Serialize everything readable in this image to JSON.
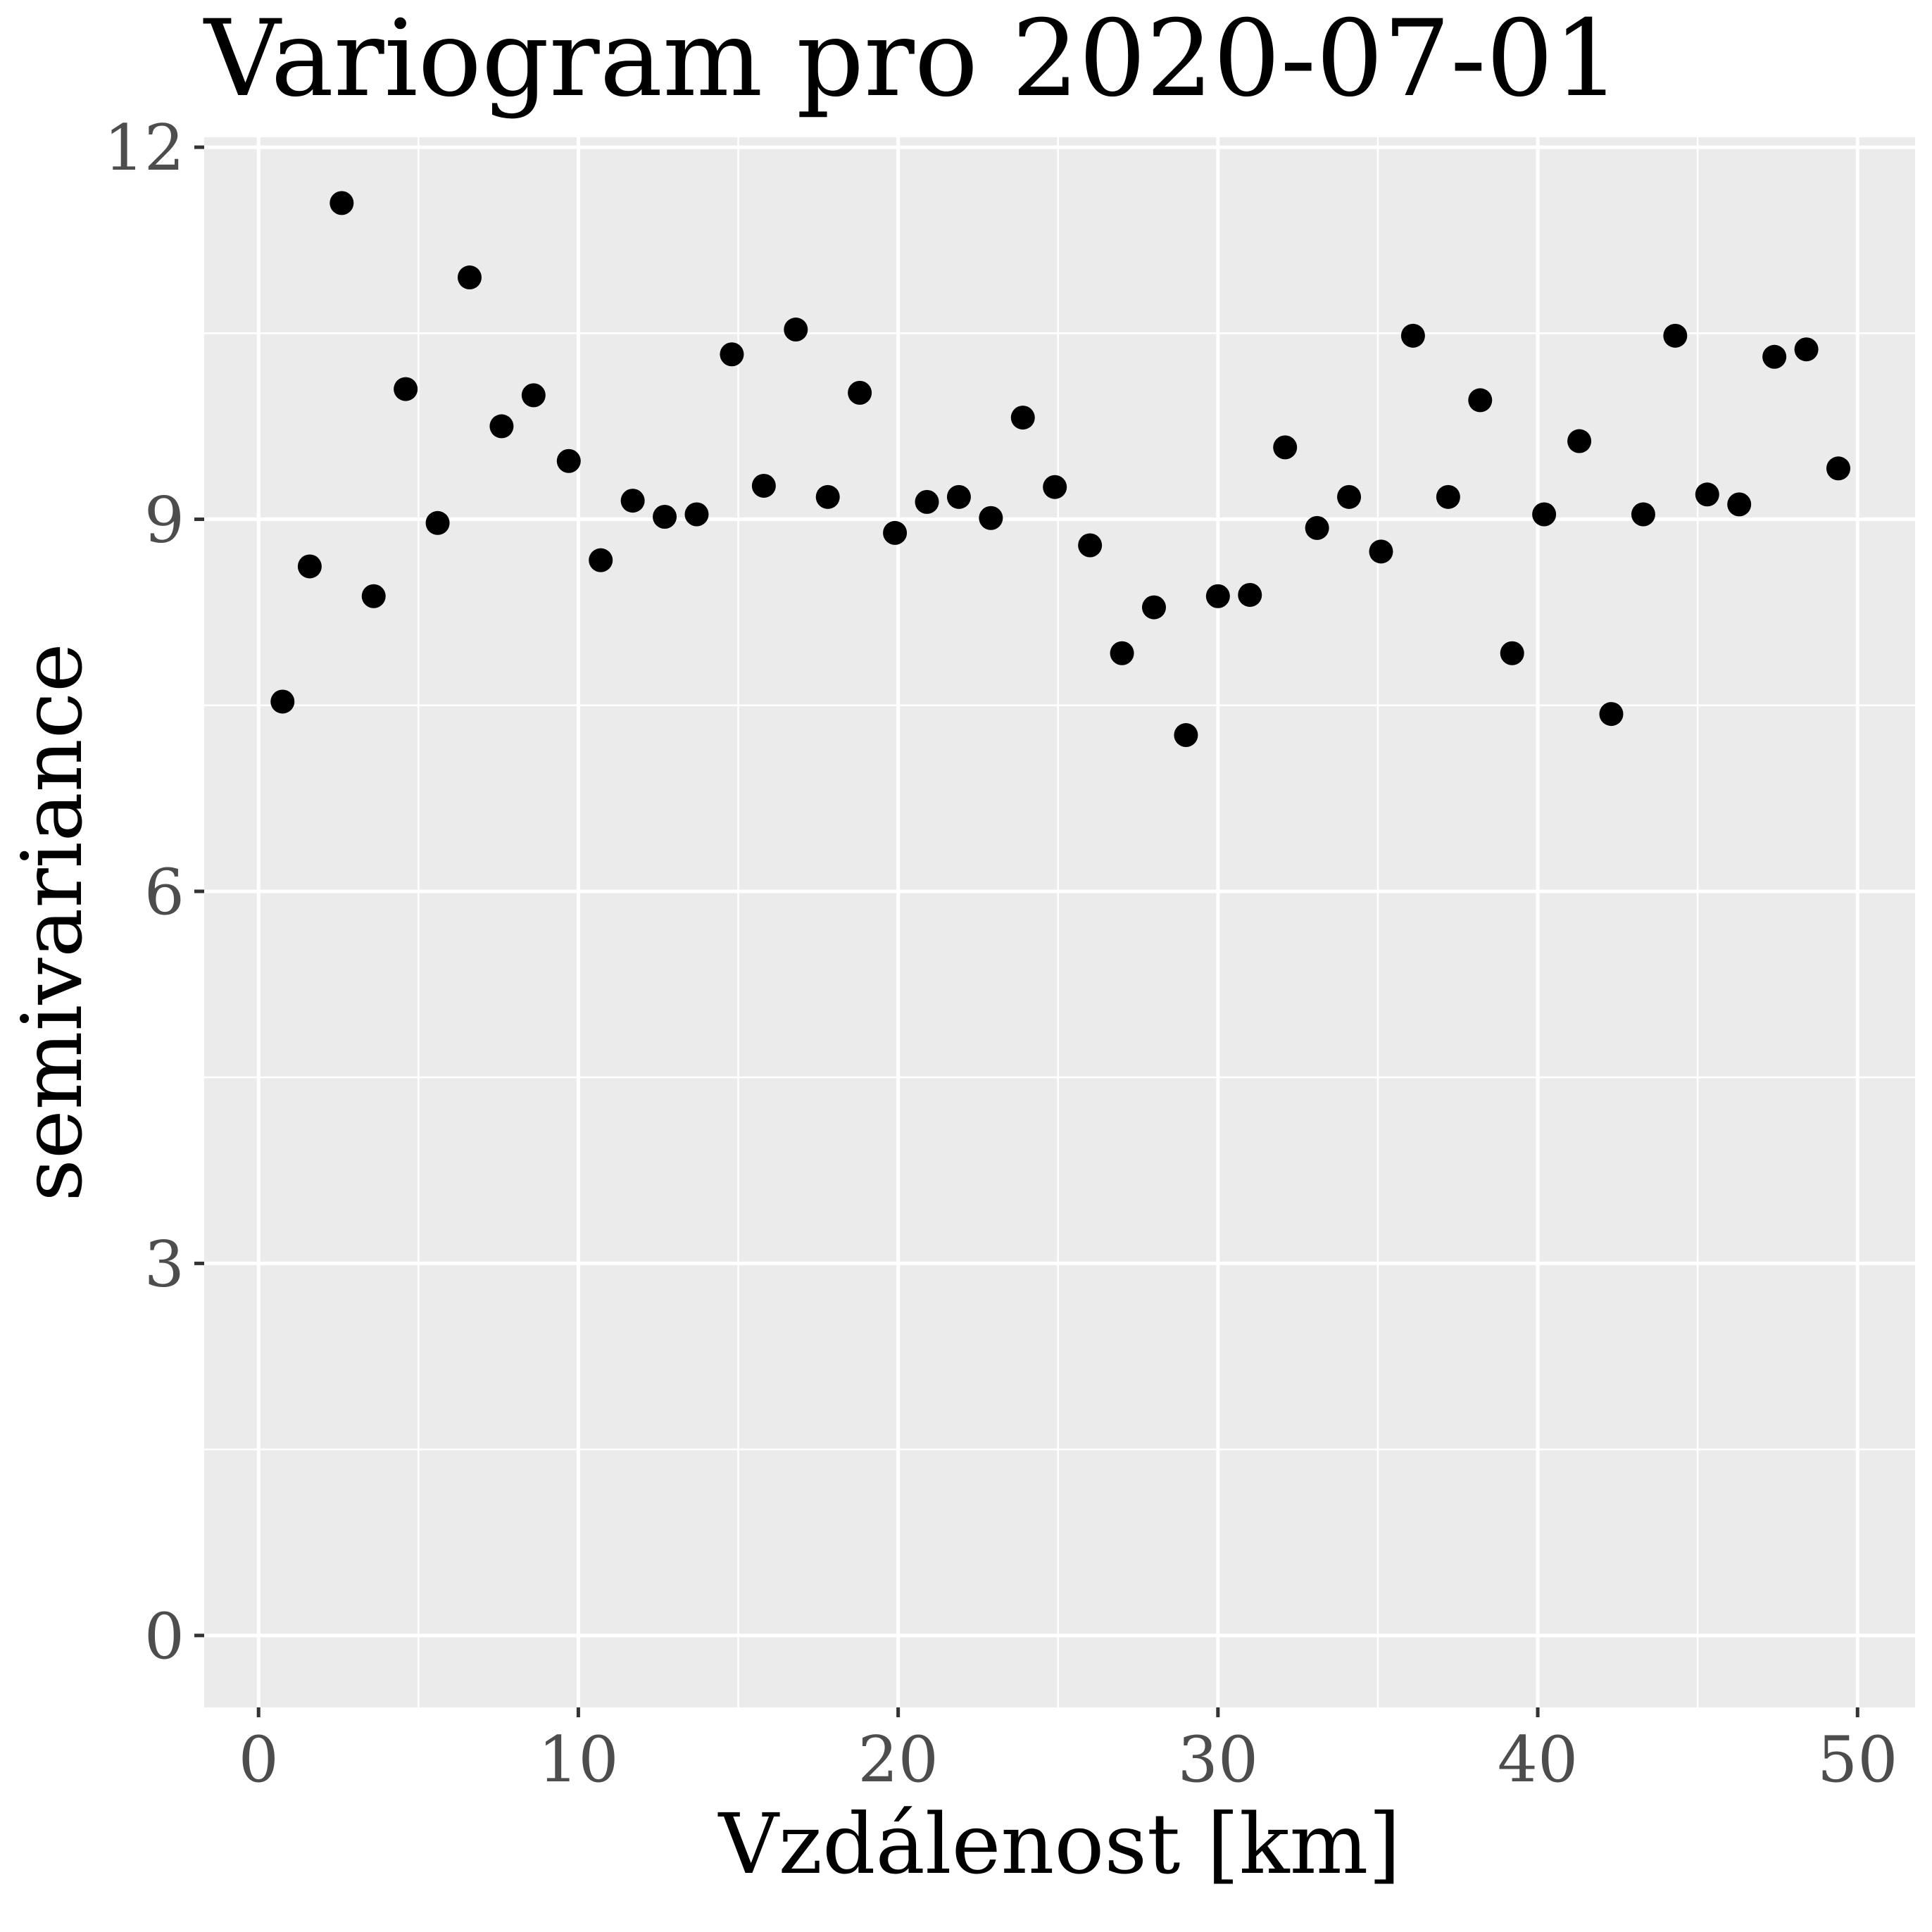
{
  "chart_data": {
    "type": "scatter",
    "title": "Variogram pro 2020-07-01",
    "xlabel": "Vzdálenost [km]",
    "ylabel": "semivariance",
    "xlim": [
      -1.7,
      51.8
    ],
    "ylim": [
      -0.58,
      12.08
    ],
    "x_ticks": [
      0,
      10,
      20,
      30,
      40,
      50
    ],
    "x_tick_labels": [
      "0",
      "10",
      "20",
      "30",
      "40",
      "50"
    ],
    "y_ticks": [
      0,
      3,
      6,
      9,
      12
    ],
    "y_tick_labels": [
      "0",
      "3",
      "6",
      "9",
      "12"
    ],
    "x_minor_ticks": [
      5,
      15,
      25,
      35,
      45
    ],
    "y_minor_ticks": [
      1.5,
      4.5,
      7.5,
      10.5
    ],
    "grid": true,
    "legend": "none",
    "colors": {
      "panel_background": "#ebebeb",
      "grid": "#ffffff",
      "point": "#000000",
      "tick_label": "#4d4d4d",
      "tick_mark": "#333333"
    },
    "x": [
      0.75,
      1.6,
      2.6,
      3.6,
      4.6,
      5.6,
      6.6,
      7.6,
      8.6,
      9.7,
      10.7,
      11.7,
      12.7,
      13.7,
      14.8,
      15.8,
      16.8,
      17.8,
      18.8,
      19.9,
      20.9,
      21.9,
      22.9,
      23.9,
      24.9,
      26.0,
      27.0,
      28.0,
      29.0,
      30.0,
      31.0,
      32.1,
      33.1,
      34.1,
      35.1,
      36.1,
      37.2,
      38.2,
      39.2,
      40.2,
      41.3,
      42.3,
      43.3,
      44.3,
      45.3,
      46.3,
      47.4,
      48.4,
      49.4
    ],
    "y": [
      7.53,
      8.62,
      11.55,
      8.38,
      10.05,
      8.97,
      10.95,
      9.75,
      10.0,
      9.47,
      8.67,
      9.15,
      9.02,
      9.04,
      10.33,
      9.27,
      10.53,
      9.18,
      10.02,
      8.89,
      9.14,
      9.18,
      9.01,
      9.82,
      9.26,
      8.79,
      7.92,
      8.29,
      7.26,
      8.38,
      8.39,
      9.58,
      8.93,
      9.18,
      8.74,
      10.48,
      9.18,
      9.96,
      7.92,
      9.04,
      9.63,
      7.43,
      9.04,
      10.48,
      9.2,
      9.12,
      10.31,
      10.37,
      9.41
    ]
  }
}
